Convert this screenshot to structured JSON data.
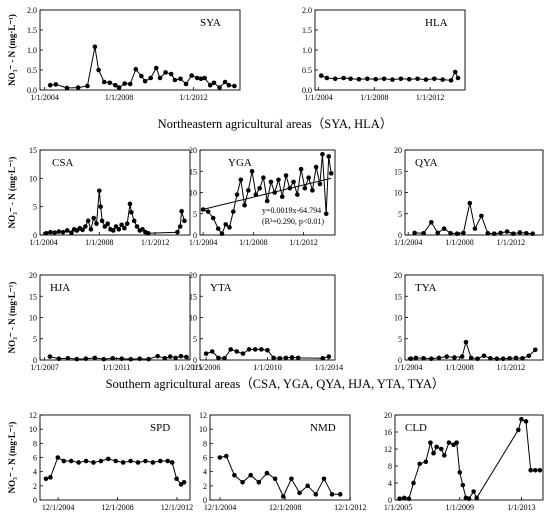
{
  "ylabel": "NO₃⁻ - N (mg·L⁻¹)",
  "captions": {
    "northeast": "Northeastern agricultural areas（SYA, HLA）",
    "south": "Southern agricultural areas（CSA, YGA, QYA, HJA, YTA, TYA）"
  },
  "chart_data": [
    {
      "id": "SYA",
      "type": "line",
      "title": "SYA",
      "show_ylabel": true,
      "xlim": [
        2003.75,
        2014.5
      ],
      "ylim": [
        0,
        2
      ],
      "yticks": [
        0,
        0.5,
        1,
        1.5,
        2
      ],
      "ytick_labels": [
        "0.0",
        "0.5",
        "1.0",
        "1.5",
        "2.0"
      ],
      "xticks": [
        2004,
        2008,
        2012
      ],
      "xtick_labels": [
        "1/1/2004",
        "1/1/2008",
        "1/1/2012"
      ],
      "series": [
        {
          "x": [
            2004.3,
            2004.6,
            2005.2,
            2005.8,
            2006.3,
            2006.7,
            2006.9,
            2007.2,
            2007.5,
            2007.8,
            2008.0,
            2008.3,
            2008.6,
            2008.9,
            2009.2,
            2009.4,
            2009.7,
            2010.0,
            2010.2,
            2010.5,
            2010.8,
            2011.0,
            2011.3,
            2011.6,
            2011.9,
            2012.2,
            2012.4,
            2012.6,
            2012.9,
            2013.1,
            2013.4,
            2013.7,
            2013.9,
            2014.2
          ],
          "y": [
            0.12,
            0.14,
            0.05,
            0.06,
            0.1,
            1.08,
            0.5,
            0.2,
            0.18,
            0.12,
            0.06,
            0.16,
            0.15,
            0.52,
            0.35,
            0.22,
            0.3,
            0.55,
            0.3,
            0.44,
            0.4,
            0.25,
            0.28,
            0.15,
            0.36,
            0.3,
            0.28,
            0.3,
            0.12,
            0.18,
            0.06,
            0.2,
            0.12,
            0.1
          ]
        }
      ]
    },
    {
      "id": "HLA",
      "type": "line",
      "title": "HLA",
      "show_ylabel": false,
      "xlim": [
        2003.75,
        2014.5
      ],
      "ylim": [
        0,
        2
      ],
      "yticks": [
        0,
        0.5,
        1,
        1.5,
        2
      ],
      "ytick_labels": [
        "0.0",
        "0.5",
        "1.0",
        "1.5",
        "2.0"
      ],
      "xticks": [
        2004,
        2008,
        2012
      ],
      "xtick_labels": [
        "1/1/2004",
        "1/1/2008",
        "1/1/2012"
      ],
      "series": [
        {
          "x": [
            2004.2,
            2004.6,
            2005.2,
            2005.8,
            2006.3,
            2006.9,
            2007.5,
            2008.1,
            2008.7,
            2009.3,
            2009.9,
            2010.5,
            2011.1,
            2011.7,
            2012.3,
            2012.9,
            2013.5,
            2013.8,
            2014.0
          ],
          "y": [
            0.36,
            0.3,
            0.28,
            0.3,
            0.28,
            0.27,
            0.28,
            0.27,
            0.28,
            0.26,
            0.28,
            0.27,
            0.28,
            0.26,
            0.28,
            0.26,
            0.24,
            0.45,
            0.3
          ]
        }
      ]
    },
    {
      "id": "CSA",
      "type": "line",
      "title": "CSA",
      "show_ylabel": true,
      "xlim": [
        2003.75,
        2014.5
      ],
      "ylim": [
        0,
        15
      ],
      "yticks": [
        0,
        5,
        10,
        15
      ],
      "ytick_labels": [
        "0",
        "5",
        "10",
        "15"
      ],
      "xticks": [
        2004,
        2008,
        2012
      ],
      "xtick_labels": [
        "1/1/2004",
        "1/1/2008",
        "1/1/2012"
      ],
      "series": [
        {
          "x": [
            2004.2,
            2004.5,
            2004.8,
            2005.1,
            2005.4,
            2005.7,
            2006.0,
            2006.2,
            2006.4,
            2006.6,
            2006.8,
            2007.0,
            2007.2,
            2007.4,
            2007.6,
            2007.8,
            2008.0,
            2008.1,
            2008.2,
            2008.4,
            2008.6,
            2008.8,
            2009.0,
            2009.2,
            2009.4,
            2009.6,
            2009.8,
            2010.0,
            2010.2,
            2010.3,
            2010.5,
            2010.7,
            2010.9,
            2011.1,
            2011.3,
            2011.5,
            2013.6,
            2013.8,
            2013.9,
            2014.1
          ],
          "y": [
            0.3,
            0.5,
            0.4,
            0.6,
            0.5,
            0.8,
            0.4,
            1.0,
            0.8,
            1.2,
            0.9,
            1.5,
            2.5,
            1.0,
            3.0,
            2.0,
            7.8,
            5.0,
            2.5,
            1.5,
            2.0,
            1.0,
            0.8,
            1.5,
            1.0,
            1.8,
            1.2,
            2.0,
            5.5,
            4.0,
            2.5,
            1.5,
            0.8,
            1.0,
            0.5,
            0.3,
            0.5,
            1.5,
            4.2,
            2.5
          ]
        }
      ]
    },
    {
      "id": "YGA",
      "type": "line",
      "title": "YGA",
      "show_ylabel": false,
      "xlim": [
        2003.75,
        2014.5
      ],
      "ylim": [
        0,
        20
      ],
      "yticks": [
        0,
        5,
        10,
        15,
        20
      ],
      "ytick_labels": [
        "0",
        "5",
        "10",
        "15",
        "20"
      ],
      "xticks": [
        2004,
        2008,
        2012
      ],
      "xtick_labels": [
        "1/1/2004",
        "1/1/2008",
        "1/1/2012"
      ],
      "series": [
        {
          "x": [
            2004.0,
            2004.4,
            2004.8,
            2005.2,
            2005.5,
            2005.8,
            2006.1,
            2006.4,
            2006.7,
            2007.0,
            2007.3,
            2007.6,
            2007.9,
            2008.2,
            2008.5,
            2008.8,
            2009.1,
            2009.4,
            2009.7,
            2010.0,
            2010.3,
            2010.6,
            2010.9,
            2011.2,
            2011.5,
            2011.8,
            2012.1,
            2012.4,
            2012.7,
            2013.0,
            2013.3,
            2013.5,
            2013.8,
            2014.0,
            2014.2
          ],
          "y": [
            6.0,
            5.5,
            4.0,
            1.5,
            0.3,
            2.5,
            1.8,
            5.5,
            9.5,
            13.0,
            7.0,
            10.5,
            15.0,
            9.5,
            11.0,
            13.5,
            8.0,
            12.5,
            10.0,
            13.0,
            9.0,
            14.0,
            11.0,
            12.5,
            9.5,
            15.5,
            11.0,
            13.5,
            10.5,
            16.0,
            12.0,
            19.0,
            5.0,
            18.5,
            14.5
          ]
        }
      ],
      "trend": {
        "x": [
          2004.0,
          2014.2
        ],
        "y": [
          6.03,
          13.36
        ]
      },
      "annotations": [
        "y=0.0019x-64.794",
        "(R²=0.290, p<0.01)"
      ]
    },
    {
      "id": "QYA",
      "type": "line",
      "title": "QYA",
      "show_ylabel": false,
      "xlim": [
        2003.75,
        2014.5
      ],
      "ylim": [
        0,
        20
      ],
      "yticks": [
        0,
        5,
        10,
        15,
        20
      ],
      "ytick_labels": [
        "0",
        "5",
        "10",
        "15",
        "20"
      ],
      "xticks": [
        2004,
        2008,
        2012
      ],
      "xtick_labels": [
        "1/1/2004",
        "1/1/2008",
        "1/1/2012"
      ],
      "series": [
        {
          "x": [
            2004.5,
            2005.2,
            2005.8,
            2006.3,
            2006.8,
            2007.3,
            2007.8,
            2008.3,
            2008.8,
            2009.2,
            2009.7,
            2010.2,
            2010.7,
            2011.2,
            2011.7,
            2012.2,
            2012.7,
            2013.2,
            2013.7
          ],
          "y": [
            0.5,
            0.4,
            3.0,
            0.5,
            1.5,
            0.4,
            0.3,
            0.5,
            7.5,
            1.5,
            4.5,
            0.4,
            0.3,
            0.5,
            0.8,
            0.3,
            0.6,
            0.4,
            0.3
          ]
        }
      ]
    },
    {
      "id": "HJA",
      "type": "line",
      "title": "HJA",
      "show_ylabel": true,
      "xlim": [
        2006.75,
        2015.1
      ],
      "ylim": [
        0,
        20
      ],
      "yticks": [
        0,
        5,
        10,
        15,
        20
      ],
      "ytick_labels": [
        "0",
        "5",
        "10",
        "15",
        "20"
      ],
      "xticks": [
        2007,
        2011,
        2015
      ],
      "xtick_labels": [
        "1/1/2007",
        "1/1/2011",
        "1/1/2015"
      ],
      "series": [
        {
          "x": [
            2007.3,
            2007.8,
            2008.3,
            2008.8,
            2009.3,
            2009.8,
            2010.3,
            2010.8,
            2011.3,
            2011.8,
            2012.3,
            2012.8,
            2013.3,
            2013.7,
            2014.0,
            2014.3,
            2014.6,
            2014.9
          ],
          "y": [
            0.8,
            0.3,
            0.4,
            0.2,
            0.3,
            0.5,
            0.2,
            0.4,
            0.3,
            0.2,
            0.3,
            0.2,
            0.9,
            0.4,
            0.8,
            0.5,
            0.9,
            0.7
          ]
        }
      ]
    },
    {
      "id": "YTA",
      "type": "line",
      "title": "YTA",
      "show_ylabel": false,
      "xlim": [
        2005.6,
        2014.4
      ],
      "ylim": [
        0,
        20
      ],
      "yticks": [
        0,
        5,
        10,
        15,
        20
      ],
      "ytick_labels": [
        "0",
        "5",
        "10",
        "15",
        "20"
      ],
      "xticks": [
        2006,
        2010,
        2014
      ],
      "xtick_labels": [
        "1/1/2006",
        "1/1/2010",
        "1/1/2014"
      ],
      "series": [
        {
          "x": [
            2006.0,
            2006.4,
            2006.8,
            2007.2,
            2007.6,
            2008.0,
            2008.4,
            2008.8,
            2009.2,
            2009.6,
            2010.0,
            2010.4,
            2010.8,
            2011.2,
            2011.6,
            2012.0,
            2013.6,
            2014.0
          ],
          "y": [
            1.5,
            2.0,
            0.5,
            0.4,
            2.5,
            2.0,
            1.5,
            2.5,
            2.5,
            2.5,
            2.3,
            0.5,
            0.4,
            0.5,
            0.6,
            0.5,
            0.4,
            0.8
          ]
        }
      ]
    },
    {
      "id": "TYA",
      "type": "line",
      "title": "TYA",
      "show_ylabel": false,
      "xlim": [
        2003.75,
        2014.5
      ],
      "ylim": [
        0,
        20
      ],
      "yticks": [
        0,
        5,
        10,
        15,
        20
      ],
      "ytick_labels": [
        "0",
        "5",
        "10",
        "15",
        "20"
      ],
      "xticks": [
        2004,
        2008,
        2012
      ],
      "xtick_labels": [
        "1/1/2004",
        "1/1/2008",
        "1/1/2012"
      ],
      "series": [
        {
          "x": [
            2004.2,
            2004.6,
            2005.2,
            2005.8,
            2006.4,
            2007.0,
            2007.6,
            2008.2,
            2008.5,
            2008.9,
            2009.4,
            2009.9,
            2010.4,
            2010.9,
            2011.4,
            2011.9,
            2012.4,
            2012.9,
            2013.4,
            2013.9
          ],
          "y": [
            0.3,
            0.5,
            0.4,
            0.3,
            0.5,
            0.8,
            0.6,
            0.8,
            4.2,
            0.5,
            0.3,
            1.0,
            0.4,
            0.3,
            0.3,
            0.4,
            0.5,
            0.4,
            1.0,
            2.4
          ]
        }
      ]
    },
    {
      "id": "SPD",
      "type": "line",
      "title": "SPD",
      "show_ylabel": true,
      "xlim": [
        2003.7,
        2013.8
      ],
      "ylim": [
        0,
        12
      ],
      "yticks": [
        0,
        2,
        4,
        6,
        8,
        10,
        12
      ],
      "ytick_labels": [
        "0",
        "2",
        "4",
        "6",
        "8",
        "10",
        "12"
      ],
      "xticks": [
        2004.92,
        2008.92,
        2012.92
      ],
      "xtick_labels": [
        "12/1/2004",
        "12/1/2008",
        "12/1/2012"
      ],
      "series": [
        {
          "x": [
            2004.1,
            2004.4,
            2004.9,
            2005.3,
            2005.8,
            2006.3,
            2006.8,
            2007.3,
            2007.8,
            2008.3,
            2008.8,
            2009.3,
            2009.8,
            2010.3,
            2010.8,
            2011.3,
            2011.8,
            2012.3,
            2012.6,
            2012.9,
            2013.2,
            2013.4
          ],
          "y": [
            3.0,
            3.2,
            6.0,
            5.5,
            5.5,
            5.3,
            5.5,
            5.3,
            5.5,
            5.8,
            5.5,
            5.3,
            5.5,
            5.3,
            5.5,
            5.3,
            5.5,
            5.5,
            5.3,
            3.0,
            2.2,
            2.5
          ]
        }
      ]
    },
    {
      "id": "NMD",
      "type": "line",
      "title": "NMD",
      "show_ylabel": false,
      "xlim": [
        2004.3,
        2012.9
      ],
      "ylim": [
        0,
        12
      ],
      "yticks": [
        0,
        2,
        4,
        6,
        8,
        10,
        12
      ],
      "ytick_labels": [
        "0",
        "2",
        "4",
        "6",
        "8",
        "10",
        "12"
      ],
      "xticks": [
        2004.92,
        2008.92,
        2012.92
      ],
      "xtick_labels": [
        "12/1/2004",
        "12/1/2008",
        "12/1/2012"
      ],
      "series": [
        {
          "x": [
            2004.9,
            2005.3,
            2005.8,
            2006.3,
            2006.8,
            2007.3,
            2007.8,
            2008.3,
            2008.8,
            2009.3,
            2009.8,
            2010.3,
            2010.8,
            2011.3,
            2011.8,
            2012.3
          ],
          "y": [
            6.0,
            6.2,
            3.5,
            2.5,
            3.5,
            2.5,
            3.8,
            3.0,
            0.5,
            3.0,
            1.0,
            2.0,
            0.8,
            3.0,
            0.8,
            0.8
          ]
        }
      ]
    },
    {
      "id": "CLD",
      "type": "line",
      "title": "CLD",
      "show_ylabel": false,
      "xlim": [
        2004.8,
        2014.4
      ],
      "ylim": [
        0,
        20
      ],
      "yticks": [
        0,
        4,
        8,
        12,
        16,
        20
      ],
      "ytick_labels": [
        "0",
        "4",
        "8",
        "12",
        "16",
        "20"
      ],
      "xticks": [
        2005,
        2009,
        2013
      ],
      "xtick_labels": [
        "1/1/2005",
        "1/1/2009",
        "1/1/2013"
      ],
      "series": [
        {
          "x": [
            2005.1,
            2005.4,
            2005.7,
            2006.0,
            2006.4,
            2006.8,
            2007.1,
            2007.3,
            2007.5,
            2007.8,
            2008.0,
            2008.3,
            2008.6,
            2008.8,
            2009.0,
            2009.2,
            2009.4,
            2009.6,
            2009.9,
            2010.1,
            2012.8,
            2013.0,
            2013.3,
            2013.6,
            2013.9,
            2014.2
          ],
          "y": [
            0.3,
            0.5,
            0.3,
            4.0,
            8.5,
            9.0,
            13.5,
            11.0,
            12.5,
            12.0,
            10.5,
            13.5,
            13.0,
            13.5,
            6.5,
            3.5,
            0.5,
            0.3,
            2.0,
            0.5,
            16.5,
            19.0,
            18.5,
            7.0,
            7.0,
            7.0
          ]
        }
      ]
    }
  ]
}
